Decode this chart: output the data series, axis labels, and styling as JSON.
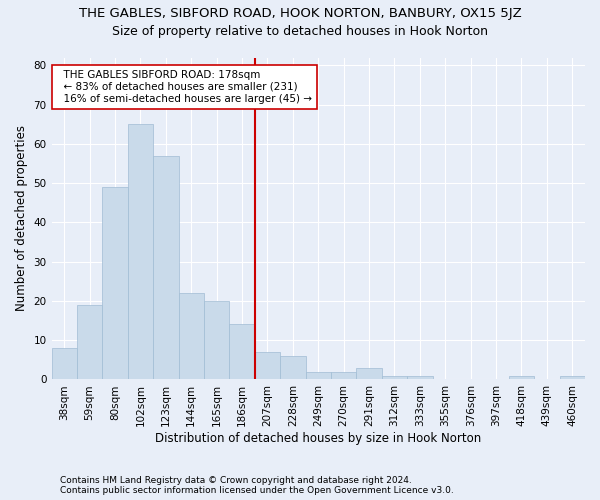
{
  "title1": "THE GABLES, SIBFORD ROAD, HOOK NORTON, BANBURY, OX15 5JZ",
  "title2": "Size of property relative to detached houses in Hook Norton",
  "xlabel": "Distribution of detached houses by size in Hook Norton",
  "ylabel": "Number of detached properties",
  "footer1": "Contains HM Land Registry data © Crown copyright and database right 2024.",
  "footer2": "Contains public sector information licensed under the Open Government Licence v3.0.",
  "categories": [
    "38sqm",
    "59sqm",
    "80sqm",
    "102sqm",
    "123sqm",
    "144sqm",
    "165sqm",
    "186sqm",
    "207sqm",
    "228sqm",
    "249sqm",
    "270sqm",
    "291sqm",
    "312sqm",
    "333sqm",
    "355sqm",
    "376sqm",
    "397sqm",
    "418sqm",
    "439sqm",
    "460sqm"
  ],
  "values": [
    8,
    19,
    49,
    65,
    57,
    22,
    20,
    14,
    7,
    6,
    2,
    2,
    3,
    1,
    1,
    0,
    0,
    0,
    1,
    0,
    1
  ],
  "bar_color": "#c9daea",
  "bar_edge_color": "#a0bcd4",
  "vline_x": 7.5,
  "vline_color": "#cc0000",
  "annotation_text": "  THE GABLES SIBFORD ROAD: 178sqm\n  ← 83% of detached houses are smaller (231)\n  16% of semi-detached houses are larger (45) →",
  "annotation_box_color": "#ffffff",
  "annotation_box_edge": "#cc0000",
  "ylim": [
    0,
    82
  ],
  "yticks": [
    0,
    10,
    20,
    30,
    40,
    50,
    60,
    70,
    80
  ],
  "bg_color": "#e8eef8",
  "plot_bg_color": "#e8eef8",
  "grid_color": "#ffffff",
  "title1_fontsize": 9.5,
  "title2_fontsize": 9.0,
  "xlabel_fontsize": 8.5,
  "ylabel_fontsize": 8.5,
  "tick_fontsize": 7.5,
  "footer_fontsize": 6.5
}
